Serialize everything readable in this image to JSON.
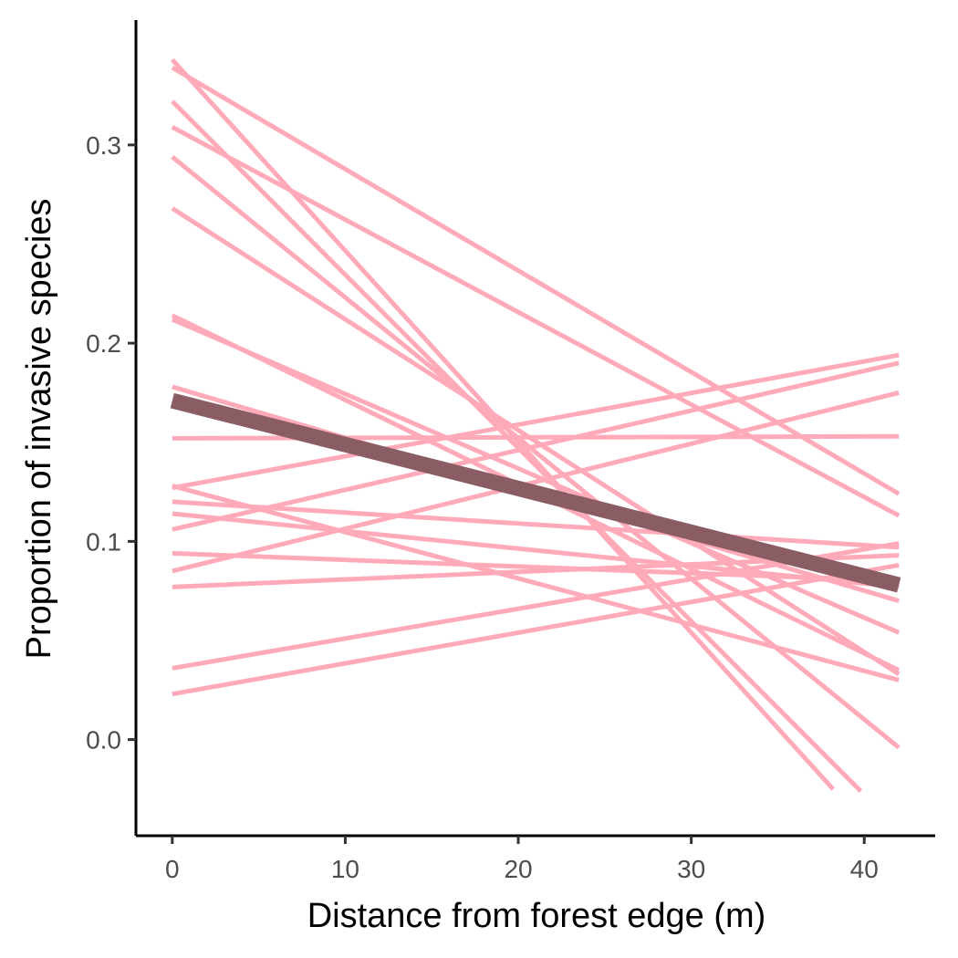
{
  "chart_data": {
    "type": "line",
    "title": "",
    "xlabel": "Distance from forest edge (m)",
    "ylabel": "Proportion of invasive species",
    "xlim": [
      -2.1,
      44.1
    ],
    "ylim": [
      -0.0485,
      0.363
    ],
    "x_ticks": [
      0,
      10,
      20,
      30,
      40
    ],
    "x_tick_labels": [
      "0",
      "10",
      "20",
      "30",
      "40"
    ],
    "y_ticks": [
      0.0,
      0.1,
      0.2,
      0.3
    ],
    "y_tick_labels": [
      "0.0",
      "0.1",
      "0.2",
      "0.3"
    ],
    "grid": false,
    "legend": "none",
    "colors": {
      "group_lines": "#ffaab9",
      "overall_line": "#8a5d65",
      "axis": "#000000",
      "tick_text": "#4d4d4d"
    },
    "series": [
      {
        "x": [
          0,
          38.2
        ],
        "y": [
          0.343,
          -0.025
        ]
      },
      {
        "x": [
          0,
          39.8
        ],
        "y": [
          0.322,
          -0.026
        ]
      },
      {
        "x": [
          0,
          42
        ],
        "y": [
          0.294,
          -0.004
        ]
      },
      {
        "x": [
          0,
          42
        ],
        "y": [
          0.339,
          0.124
        ]
      },
      {
        "x": [
          0,
          42
        ],
        "y": [
          0.309,
          0.113
        ]
      },
      {
        "x": [
          0,
          42
        ],
        "y": [
          0.268,
          0.033
        ]
      },
      {
        "x": [
          0,
          42
        ],
        "y": [
          0.214,
          0.035
        ]
      },
      {
        "x": [
          0,
          42
        ],
        "y": [
          0.212,
          0.054
        ]
      },
      {
        "x": [
          0,
          42
        ],
        "y": [
          0.178,
          0.07
        ]
      },
      {
        "x": [
          0,
          42
        ],
        "y": [
          0.152,
          0.153
        ]
      },
      {
        "x": [
          0,
          42
        ],
        "y": [
          0.128,
          0.03
        ]
      },
      {
        "x": [
          0,
          42
        ],
        "y": [
          0.127,
          0.194
        ]
      },
      {
        "x": [
          0,
          42
        ],
        "y": [
          0.12,
          0.097
        ]
      },
      {
        "x": [
          0,
          42
        ],
        "y": [
          0.114,
          0.077
        ]
      },
      {
        "x": [
          0,
          42
        ],
        "y": [
          0.106,
          0.19
        ]
      },
      {
        "x": [
          0,
          42
        ],
        "y": [
          0.094,
          0.08
        ]
      },
      {
        "x": [
          0,
          42
        ],
        "y": [
          0.085,
          0.175
        ]
      },
      {
        "x": [
          0,
          42
        ],
        "y": [
          0.077,
          0.093
        ]
      },
      {
        "x": [
          0,
          42
        ],
        "y": [
          0.036,
          0.099
        ]
      },
      {
        "x": [
          0,
          42
        ],
        "y": [
          0.023,
          0.088
        ]
      },
      {
        "x": [
          0,
          42
        ],
        "y": [
          0.171,
          0.078
        ],
        "overall": true
      }
    ]
  }
}
